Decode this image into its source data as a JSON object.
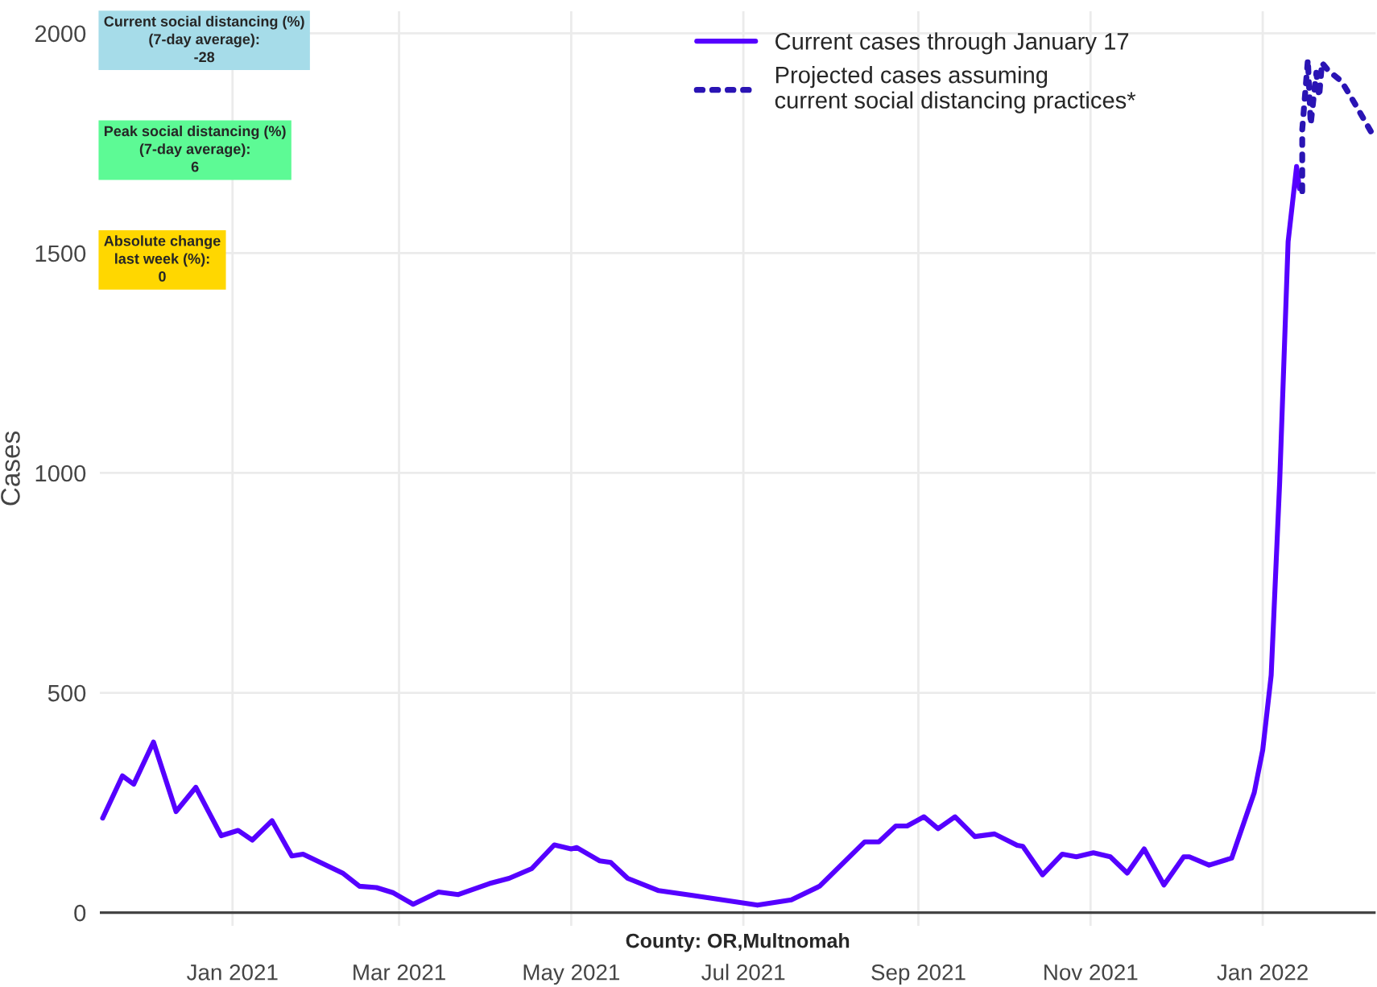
{
  "chart_data": {
    "type": "line",
    "xlabel": "County: OR,Multnomah",
    "ylabel": "Cases",
    "xlim": [
      "2020-11-15",
      "2022-02-10"
    ],
    "ylim": [
      -30,
      2050
    ],
    "xticks": [
      {
        "value": "2021-01-01",
        "label": "Jan 2021"
      },
      {
        "value": "2021-03-01",
        "label": "Mar 2021"
      },
      {
        "value": "2021-05-01",
        "label": "May 2021"
      },
      {
        "value": "2021-07-01",
        "label": "Jul 2021"
      },
      {
        "value": "2021-09-01",
        "label": "Sep 2021"
      },
      {
        "value": "2021-11-01",
        "label": "Nov 2021"
      },
      {
        "value": "2022-01-01",
        "label": "Jan 2022"
      }
    ],
    "yticks": [
      0,
      500,
      1000,
      1500,
      2000
    ],
    "grid": true,
    "legend": "top",
    "annotations": [
      "Current social distancing (%)\n(7-day average):\n-28",
      "Peak social distancing (%)\n(7-day average):\n6",
      "Absolute change\nlast week (%):\n0"
    ],
    "series": [
      {
        "name": "Current cases through January 17",
        "color": "#5500ff",
        "line_style": "solid",
        "x": [
          "2020-11-16",
          "2020-11-23",
          "2020-11-27",
          "2020-12-04",
          "2020-12-12",
          "2020-12-19",
          "2020-12-28",
          "2021-01-03",
          "2021-01-08",
          "2021-01-15",
          "2021-01-22",
          "2021-01-26",
          "2021-02-09",
          "2021-02-15",
          "2021-02-21",
          "2021-02-27",
          "2021-03-06",
          "2021-03-15",
          "2021-03-22",
          "2021-04-02",
          "2021-04-09",
          "2021-04-17",
          "2021-04-25",
          "2021-05-01",
          "2021-05-03",
          "2021-05-11",
          "2021-05-15",
          "2021-05-21",
          "2021-06-01",
          "2021-06-13",
          "2021-07-06",
          "2021-07-18",
          "2021-07-28",
          "2021-08-13",
          "2021-08-18",
          "2021-08-24",
          "2021-08-28",
          "2021-09-03",
          "2021-09-08",
          "2021-09-14",
          "2021-09-21",
          "2021-09-28",
          "2021-10-06",
          "2021-10-08",
          "2021-10-15",
          "2021-10-22",
          "2021-10-27",
          "2021-11-02",
          "2021-11-08",
          "2021-11-14",
          "2021-11-20",
          "2021-11-27",
          "2021-12-04",
          "2021-12-06",
          "2021-12-13",
          "2021-12-21",
          "2021-12-29",
          "2022-01-01",
          "2022-01-04",
          "2022-01-07",
          "2022-01-10",
          "2022-01-13",
          "2022-01-14"
        ],
        "values": [
          215,
          311,
          292,
          388,
          230,
          285,
          175,
          187,
          165,
          209,
          129,
          133,
          90,
          60,
          57,
          45,
          19,
          47,
          41,
          66,
          78,
          100,
          154,
          145,
          148,
          118,
          114,
          78,
          50,
          39,
          17,
          29,
          60,
          161,
          161,
          197,
          197,
          218,
          191,
          218,
          173,
          179,
          153,
          151,
          86,
          133,
          127,
          136,
          127,
          90,
          145,
          63,
          127,
          127,
          108,
          124,
          273,
          370,
          540,
          978,
          1526,
          1697,
          1647
        ]
      },
      {
        "name": "Projected cases assuming\ncurrent social distancing practices*",
        "color": "#2a14b4",
        "line_style": "dotted",
        "x": [
          "2022-01-15",
          "2022-01-15",
          "2022-01-17",
          "2022-01-18",
          "2022-01-20",
          "2022-01-21",
          "2022-01-22",
          "2022-01-24",
          "2022-01-29",
          "2022-02-02",
          "2022-02-09"
        ],
        "values": [
          1641,
          1781,
          1940,
          1793,
          1910,
          1856,
          1933,
          1917,
          1890,
          1847,
          1769
        ]
      }
    ]
  }
}
